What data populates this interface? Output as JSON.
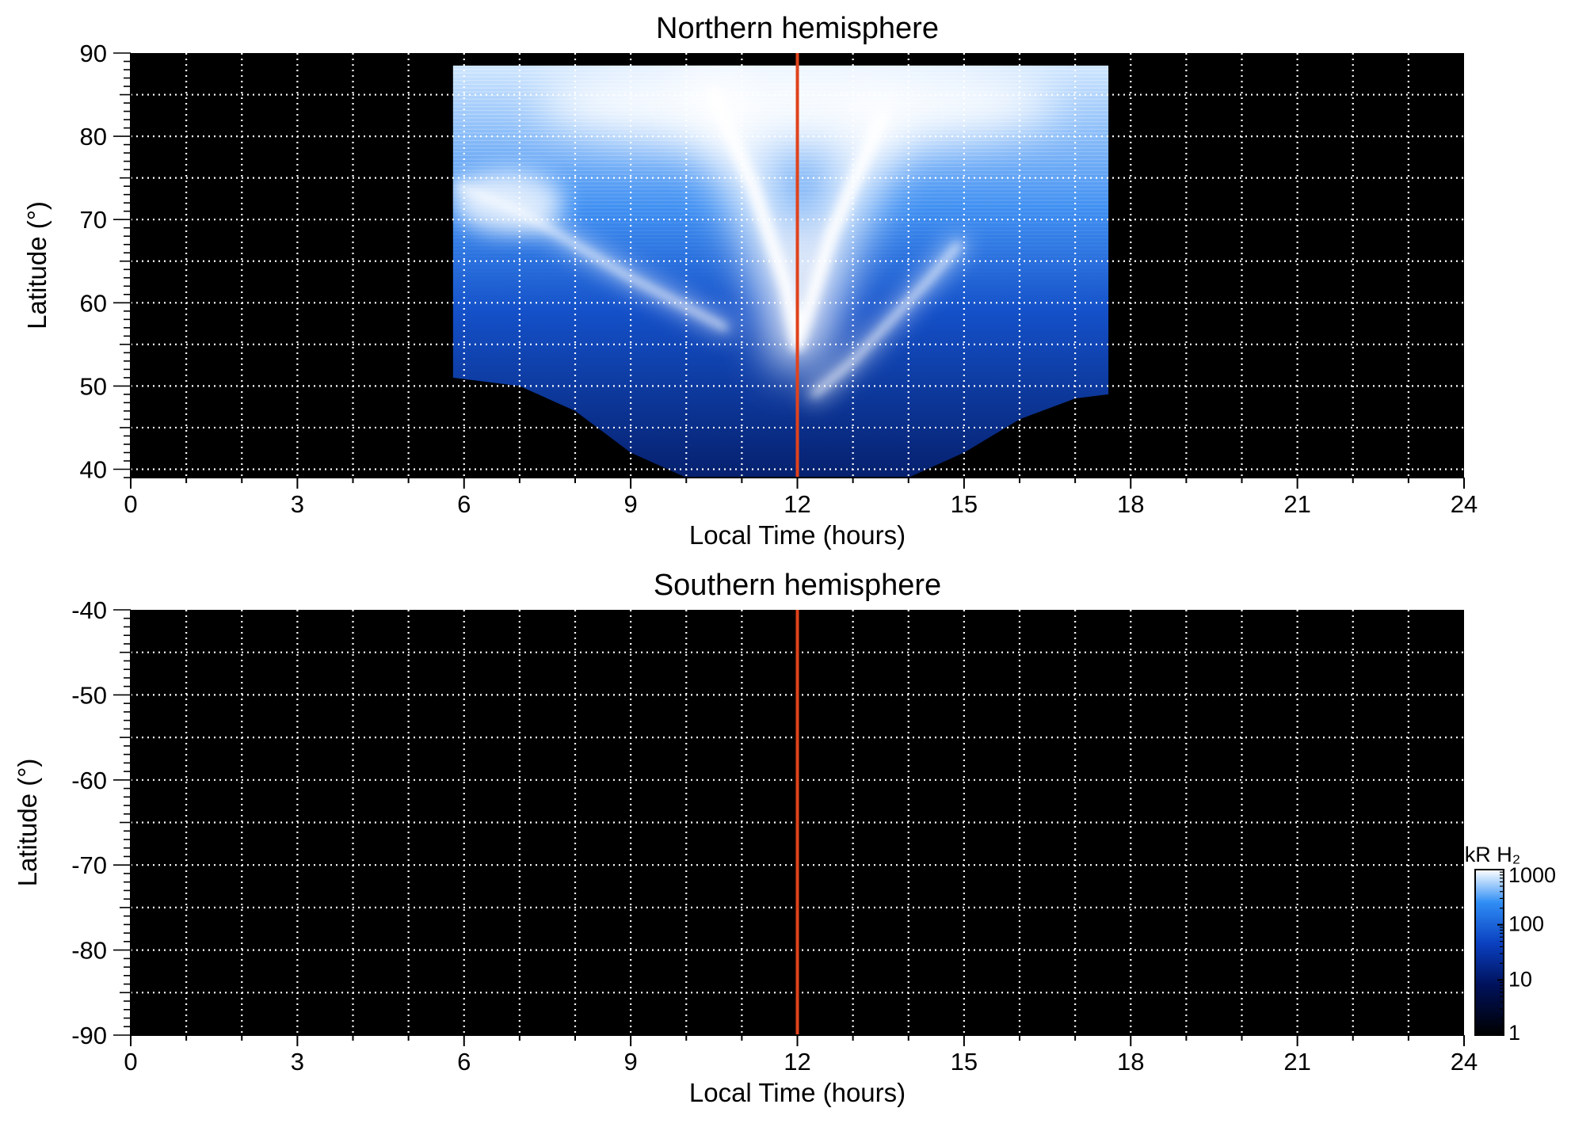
{
  "colors": {
    "background": "#000000",
    "grid": "#ffffff",
    "noon_line": "#e0421c",
    "axis": "#000000",
    "colorscale": [
      "#000000",
      "#00115a",
      "#0a3fbf",
      "#2f8df5",
      "#ffffff"
    ]
  },
  "colorbar": {
    "title": "kR H₂",
    "ticks": [
      1000,
      100,
      10,
      1
    ],
    "range": [
      1,
      1000
    ],
    "scale": "log"
  },
  "chart_data": [
    {
      "type": "heatmap",
      "title": "Northern hemisphere",
      "xlabel": "Local Time (hours)",
      "ylabel": "Latitude (°)",
      "xlim": [
        0,
        24
      ],
      "ylim": [
        39,
        90
      ],
      "x_ticks": [
        0,
        3,
        6,
        9,
        12,
        15,
        18,
        21,
        24
      ],
      "y_ticks": [
        40,
        50,
        60,
        70,
        80,
        90
      ],
      "x_grid_step": 1,
      "y_grid_step": 5,
      "grid": "dotted",
      "noon_line_x": 12,
      "coverage": {
        "lt_start": 5.8,
        "lt_end": 17.6,
        "upper_lat_limit": 88.5,
        "lower_boundary": [
          [
            5.8,
            51
          ],
          [
            7.0,
            50
          ],
          [
            8.0,
            47
          ],
          [
            9.0,
            42
          ],
          [
            10.0,
            39
          ],
          [
            14.0,
            39
          ],
          [
            15.0,
            42
          ],
          [
            16.0,
            46
          ],
          [
            17.0,
            48.5
          ],
          [
            17.6,
            49
          ]
        ]
      },
      "emission_features": [
        {
          "name": "dawn arc",
          "points": [
            [
              5.9,
              74
            ],
            [
              7.0,
              71
            ],
            [
              8.0,
              67
            ],
            [
              9.0,
              63
            ],
            [
              10.0,
              59.5
            ],
            [
              10.7,
              57
            ]
          ],
          "level_kR": 800
        },
        {
          "name": "noon arc",
          "points": [
            [
              12.3,
              49
            ],
            [
              13.0,
              53
            ],
            [
              13.7,
              58
            ],
            [
              14.4,
              63
            ],
            [
              14.9,
              67
            ]
          ],
          "level_kR": 400
        },
        {
          "name": "cusp region",
          "points": [
            [
              10.5,
              85
            ],
            [
              11.2,
              74
            ],
            [
              11.8,
              62
            ],
            [
              12.0,
              55
            ],
            [
              12.6,
              68
            ],
            [
              13.5,
              82
            ]
          ],
          "level_kR": 1000
        }
      ]
    },
    {
      "type": "heatmap",
      "title": "Southern hemisphere",
      "xlabel": "Local Time (hours)",
      "ylabel": "Latitude (°)",
      "xlim": [
        0,
        24
      ],
      "ylim": [
        -90,
        -40
      ],
      "x_ticks": [
        0,
        3,
        6,
        9,
        12,
        15,
        18,
        21,
        24
      ],
      "y_ticks": [
        -40,
        -50,
        -60,
        -70,
        -80,
        -90
      ],
      "x_grid_step": 1,
      "y_grid_step": 5,
      "grid": "dotted",
      "noon_line_x": 12,
      "coverage": null,
      "emission_features": []
    }
  ]
}
